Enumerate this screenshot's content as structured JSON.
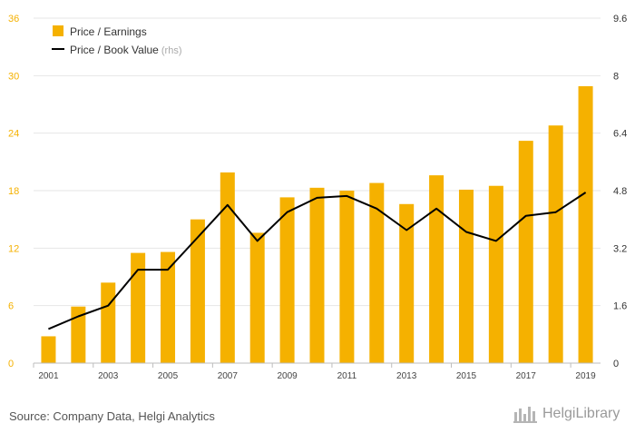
{
  "chart_data": {
    "type": "bar",
    "categories": [
      "2001",
      "2002",
      "2003",
      "2004",
      "2005",
      "2006",
      "2007",
      "2008",
      "2009",
      "2010",
      "2011",
      "2012",
      "2013",
      "2014",
      "2015",
      "2016",
      "2017",
      "2018",
      "2019"
    ],
    "x_tick_labels": [
      "2001",
      "2003",
      "2005",
      "2007",
      "2009",
      "2011",
      "2013",
      "2015",
      "2017",
      "2019"
    ],
    "series": [
      {
        "name": "Price / Earnings",
        "kind": "bar",
        "axis": "left",
        "color": "#F5B100",
        "values": [
          2.8,
          5.9,
          8.4,
          11.5,
          11.6,
          15.0,
          19.9,
          13.6,
          17.3,
          18.3,
          18.0,
          18.8,
          16.6,
          19.6,
          18.1,
          18.5,
          23.2,
          24.8,
          28.9
        ]
      },
      {
        "name": "Price / Book Value",
        "kind": "line",
        "axis": "right",
        "color": "#000000",
        "values": [
          0.95,
          1.3,
          1.6,
          2.6,
          2.6,
          3.5,
          4.4,
          3.4,
          4.2,
          4.6,
          4.65,
          4.3,
          3.7,
          4.3,
          3.65,
          3.4,
          4.1,
          4.2,
          4.75
        ]
      }
    ],
    "left_axis": {
      "ylim": [
        0,
        36
      ],
      "ticks": [
        "0",
        "6",
        "12",
        "18",
        "24",
        "30",
        "36"
      ],
      "color": "#F5B100"
    },
    "right_axis": {
      "ylim": [
        0,
        9.6
      ],
      "ticks": [
        "0",
        "1.6",
        "3.2",
        "4.8",
        "6.4",
        "8",
        "9.6"
      ]
    },
    "legend": {
      "placement": "top-left",
      "items": [
        {
          "label": "Price / Earnings",
          "suffix": "",
          "color": "#F5B100",
          "marker": "square"
        },
        {
          "label": "Price / Book Value",
          "suffix": "(rhs)",
          "color": "#000000",
          "marker": "line"
        }
      ]
    },
    "grid": true
  },
  "footer": {
    "source": "Source: Company Data, Helgi Analytics",
    "logo_text": "HelgiLibrary"
  }
}
